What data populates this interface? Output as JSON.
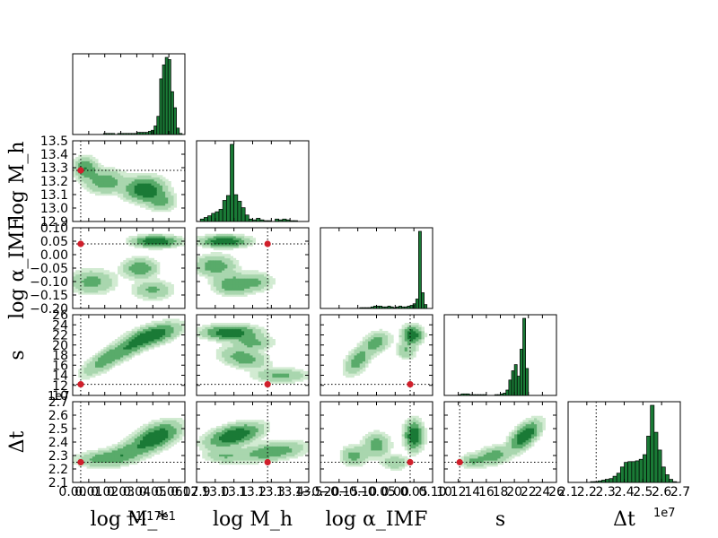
{
  "chart_data": {
    "type": "corner",
    "colors": {
      "dark": "#1a7a36",
      "mid": "#59ab6a",
      "light": "#a9d6ae",
      "faint": "#d2ebd2",
      "truth": "#d01f2b",
      "hist": "#1a7a36"
    },
    "params": [
      {
        "name": "logMstar",
        "label": "log M_*",
        "offset_text": "+1.17e1",
        "range": [
          0.0,
          0.07
        ],
        "ticks": [
          0.0,
          0.01,
          0.02,
          0.03,
          0.04,
          0.05,
          0.06,
          0.07
        ],
        "tick_labels": [
          "0.00",
          "0.01",
          "0.02",
          "0.03",
          "0.04",
          "0.05",
          "0.06",
          "0.07"
        ],
        "truth": 0.005
      },
      {
        "name": "logMh",
        "label": "log M_h",
        "offset_text": "",
        "range": [
          12.9,
          13.5
        ],
        "ticks": [
          12.9,
          13.0,
          13.1,
          13.2,
          13.3,
          13.4,
          13.5
        ],
        "tick_labels": [
          "12.9",
          "13.0",
          "13.1",
          "13.2",
          "13.3",
          "13.4",
          "13.5"
        ],
        "truth": 13.28
      },
      {
        "name": "logalphaIMF",
        "label": "log α_IMF",
        "offset_text": "",
        "range": [
          -0.2,
          0.1
        ],
        "ticks": [
          -0.2,
          -0.15,
          -0.1,
          -0.05,
          0.0,
          0.05,
          0.1
        ],
        "tick_labels": [
          "−0.20",
          "−0.15",
          "−0.10",
          "−0.05",
          "0.00",
          "0.05",
          "0.10"
        ],
        "truth": 0.04
      },
      {
        "name": "s",
        "label": "s",
        "offset_text": "",
        "range": [
          10,
          26
        ],
        "ticks": [
          10,
          12,
          14,
          16,
          18,
          20,
          22,
          24,
          26
        ],
        "tick_labels": [
          "10",
          "12",
          "14",
          "16",
          "18",
          "20",
          "22",
          "24",
          "26"
        ],
        "truth": 12.2
      },
      {
        "name": "dt",
        "label": "Δt",
        "offset_text": "1e7",
        "range": [
          2.1,
          2.7
        ],
        "ticks": [
          2.1,
          2.2,
          2.3,
          2.4,
          2.5,
          2.6,
          2.7
        ],
        "tick_labels": [
          "2.1",
          "2.2",
          "2.3",
          "2.4",
          "2.5",
          "2.6",
          "2.7"
        ],
        "truth": 2.25
      }
    ],
    "histograms": [
      [
        0,
        0,
        0,
        0,
        0,
        0,
        0,
        0,
        0,
        0,
        0,
        1,
        1,
        1,
        1,
        0,
        1,
        1,
        1,
        1,
        1,
        1,
        1,
        2,
        2,
        2,
        2,
        3,
        4,
        8,
        17,
        52,
        65,
        72,
        70,
        40,
        25,
        6,
        1,
        0
      ],
      [
        0,
        3,
        5,
        7,
        10,
        12,
        15,
        26,
        32,
        95,
        33,
        25,
        17,
        8,
        3,
        2,
        4,
        2,
        1,
        1,
        0,
        3,
        2,
        3,
        2,
        1,
        1,
        0,
        0,
        0
      ],
      [
        0,
        0,
        0,
        0,
        0,
        0,
        0,
        0,
        0,
        0,
        0,
        0,
        0,
        0,
        1,
        1,
        1,
        1,
        2,
        3,
        3,
        3,
        2,
        2,
        3,
        2,
        1,
        2,
        3,
        2,
        2,
        3,
        4,
        6,
        12,
        98,
        20,
        5,
        0,
        0
      ],
      [
        0,
        0,
        0,
        0,
        0,
        1,
        2,
        2,
        2,
        1,
        1,
        1,
        1,
        1,
        1,
        0,
        0,
        0,
        1,
        1,
        2,
        3,
        7,
        20,
        32,
        40,
        25,
        60,
        100,
        35,
        0,
        0,
        0,
        0,
        0,
        0,
        0,
        0,
        0,
        0
      ],
      [
        0,
        0,
        0,
        0,
        0,
        0,
        1,
        1,
        2,
        3,
        4,
        5,
        8,
        12,
        20,
        26,
        27,
        27,
        28,
        30,
        36,
        60,
        100,
        65,
        42,
        20,
        10,
        4,
        1,
        0
      ]
    ],
    "pairs": [
      {
        "x": 0,
        "y": 1,
        "blobs": [
          {
            "c": [
              0.008,
              13.3
            ],
            "s": [
              0.004,
              0.045
            ],
            "r": 0,
            "w": 0.6
          },
          {
            "c": [
              0.02,
              13.2
            ],
            "s": [
              0.007,
              0.05
            ],
            "r": 0,
            "w": 0.5
          },
          {
            "c": [
              0.045,
              13.14
            ],
            "s": [
              0.007,
              0.05
            ],
            "r": 0,
            "w": 1.0
          },
          {
            "c": [
              0.055,
              13.05
            ],
            "s": [
              0.005,
              0.04
            ],
            "r": 0,
            "w": 0.4
          }
        ]
      },
      {
        "x": 0,
        "y": 2,
        "blobs": [
          {
            "c": [
              0.052,
              0.05
            ],
            "s": [
              0.008,
              0.012
            ],
            "r": 0,
            "w": 1.0
          },
          {
            "c": [
              0.012,
              -0.1
            ],
            "s": [
              0.008,
              0.025
            ],
            "r": 0,
            "w": 0.4
          },
          {
            "c": [
              0.042,
              -0.05
            ],
            "s": [
              0.006,
              0.02
            ],
            "r": 0,
            "w": 0.55
          },
          {
            "c": [
              0.05,
              -0.13
            ],
            "s": [
              0.007,
              0.02
            ],
            "r": 0,
            "w": 0.35
          }
        ]
      },
      {
        "x": 0,
        "y": 3,
        "blobs": [
          {
            "c": [
              0.05,
              22.0
            ],
            "s": [
              0.009,
              1.3
            ],
            "r": 0.55,
            "w": 1.0
          },
          {
            "c": [
              0.02,
              17.0
            ],
            "s": [
              0.008,
              1.8
            ],
            "r": 0.75,
            "w": 0.45
          },
          {
            "c": [
              0.035,
              19.5
            ],
            "s": [
              0.008,
              1.5
            ],
            "r": 0.7,
            "w": 0.5
          }
        ]
      },
      {
        "x": 0,
        "y": 4,
        "blobs": [
          {
            "c": [
              0.052,
              2.44
            ],
            "s": [
              0.008,
              0.06
            ],
            "r": 0.5,
            "w": 1.0
          },
          {
            "c": [
              0.02,
              2.28
            ],
            "s": [
              0.01,
              0.035
            ],
            "r": 0.2,
            "w": 0.45
          },
          {
            "c": [
              0.035,
              2.33
            ],
            "s": [
              0.008,
              0.05
            ],
            "r": 0.5,
            "w": 0.45
          }
        ]
      },
      {
        "x": 1,
        "y": 2,
        "blobs": [
          {
            "c": [
              13.05,
              0.05
            ],
            "s": [
              0.07,
              0.012
            ],
            "r": 0,
            "w": 1.0
          },
          {
            "c": [
              13.0,
              -0.04
            ],
            "s": [
              0.06,
              0.022
            ],
            "r": 0,
            "w": 0.5
          },
          {
            "c": [
              13.1,
              -0.11
            ],
            "s": [
              0.06,
              0.022
            ],
            "r": 0,
            "w": 0.55
          },
          {
            "c": [
              13.22,
              -0.1
            ],
            "s": [
              0.05,
              0.02
            ],
            "r": 0,
            "w": 0.3
          }
        ]
      },
      {
        "x": 1,
        "y": 3,
        "blobs": [
          {
            "c": [
              13.08,
              22.5
            ],
            "s": [
              0.08,
              0.8
            ],
            "r": 0,
            "w": 1.0
          },
          {
            "c": [
              13.15,
              17.5
            ],
            "s": [
              0.07,
              1.2
            ],
            "r": -0.3,
            "w": 0.45
          },
          {
            "c": [
              13.35,
              14.0
            ],
            "s": [
              0.08,
              0.8
            ],
            "r": 0,
            "w": 0.35
          },
          {
            "c": [
              13.2,
              20.5
            ],
            "s": [
              0.06,
              0.8
            ],
            "r": 0,
            "w": 0.4
          }
        ]
      },
      {
        "x": 1,
        "y": 4,
        "blobs": [
          {
            "c": [
              13.1,
              2.45
            ],
            "s": [
              0.08,
              0.05
            ],
            "r": 0.5,
            "w": 1.0
          },
          {
            "c": [
              13.3,
              2.33
            ],
            "s": [
              0.1,
              0.04
            ],
            "r": 0.4,
            "w": 0.55
          },
          {
            "c": [
              13.05,
              2.3
            ],
            "s": [
              0.06,
              0.03
            ],
            "r": 0,
            "w": 0.3
          }
        ]
      },
      {
        "x": 2,
        "y": 3,
        "blobs": [
          {
            "c": [
              0.045,
              22.0
            ],
            "s": [
              0.015,
              1.0
            ],
            "r": 0,
            "w": 1.0
          },
          {
            "c": [
              -0.1,
              17.0
            ],
            "s": [
              0.02,
              1.6
            ],
            "r": 0.5,
            "w": 0.45
          },
          {
            "c": [
              -0.05,
              20.5
            ],
            "s": [
              0.02,
              1.2
            ],
            "r": 0.3,
            "w": 0.45
          },
          {
            "c": [
              0.03,
              19.0
            ],
            "s": [
              0.015,
              1.0
            ],
            "r": 0,
            "w": 0.3
          }
        ]
      },
      {
        "x": 2,
        "y": 4,
        "blobs": [
          {
            "c": [
              0.05,
              2.45
            ],
            "s": [
              0.014,
              0.06
            ],
            "r": 0,
            "w": 1.0
          },
          {
            "c": [
              -0.05,
              2.38
            ],
            "s": [
              0.02,
              0.05
            ],
            "r": 0,
            "w": 0.45
          },
          {
            "c": [
              -0.11,
              2.3
            ],
            "s": [
              0.02,
              0.04
            ],
            "r": 0,
            "w": 0.4
          },
          {
            "c": [
              0.0,
              2.25
            ],
            "s": [
              0.02,
              0.03
            ],
            "r": 0,
            "w": 0.3
          }
        ]
      },
      {
        "x": 3,
        "y": 4,
        "blobs": [
          {
            "c": [
              21.5,
              2.45
            ],
            "s": [
              1.2,
              0.06
            ],
            "r": 0.6,
            "w": 1.0
          },
          {
            "c": [
              17.0,
              2.3
            ],
            "s": [
              1.5,
              0.04
            ],
            "r": 0.3,
            "w": 0.45
          },
          {
            "c": [
              14.0,
              2.26
            ],
            "s": [
              1.0,
              0.03
            ],
            "r": 0,
            "w": 0.3
          }
        ]
      }
    ]
  }
}
